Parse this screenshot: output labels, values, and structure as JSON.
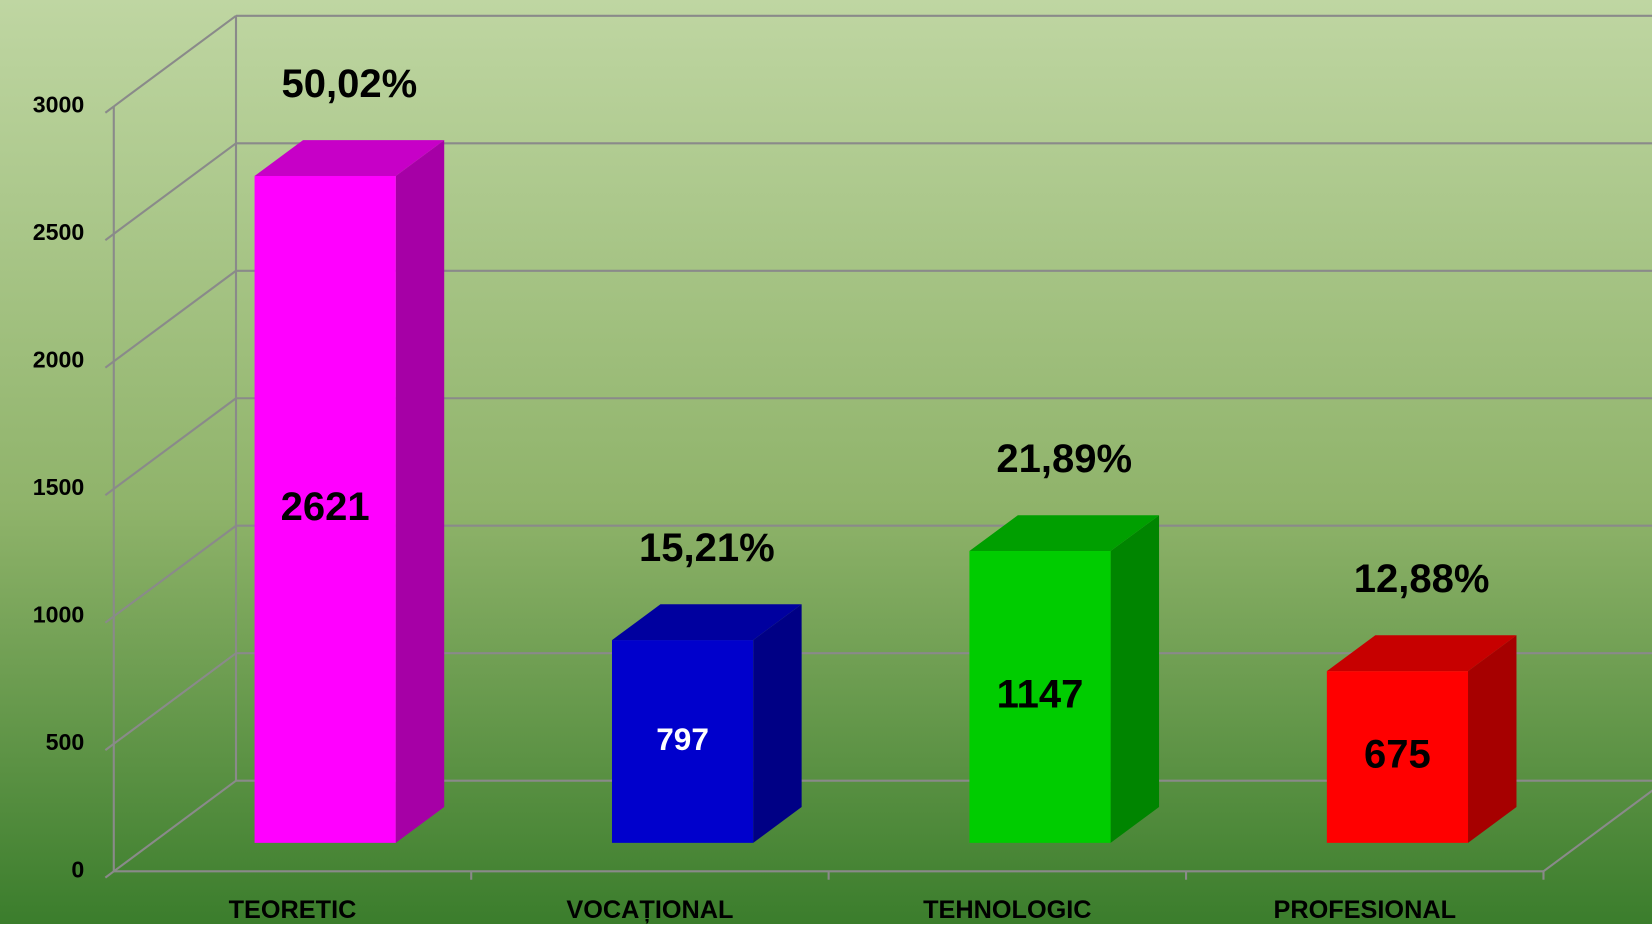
{
  "chart_data": {
    "type": "bar3d",
    "categories": [
      "TEORETIC",
      "VOCAȚIONAL",
      "TEHNOLOGIC",
      "PROFESIONAL"
    ],
    "values": [
      2621,
      797,
      1147,
      675
    ],
    "annotations": [
      "50,02%",
      "15,21%",
      "21,89%",
      "12,88%"
    ],
    "colors": [
      "#ff00ff",
      "#0000cc",
      "#00cc00",
      "#ff0000"
    ],
    "label_colors": [
      "#000000",
      "#ffffff",
      "#000000",
      "#000000"
    ],
    "ylim": [
      0,
      3000
    ],
    "yticks": [
      0,
      500,
      1000,
      1500,
      2000,
      2500,
      3000
    ],
    "grid": true
  }
}
